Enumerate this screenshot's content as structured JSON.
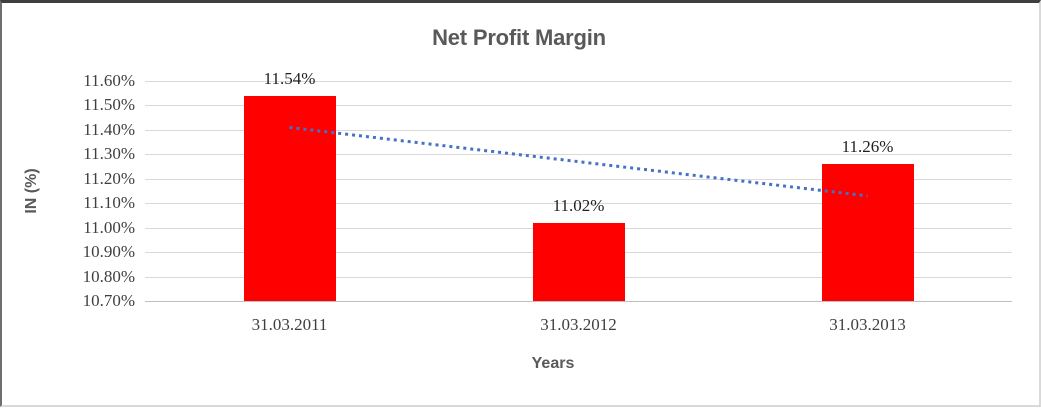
{
  "chart_data": {
    "type": "bar",
    "title": "Net Profit Margin",
    "xlabel": "Years",
    "ylabel": "IN (%)",
    "categories": [
      "31.03.2011",
      "31.03.2012",
      "31.03.2013"
    ],
    "values": [
      11.54,
      11.02,
      11.26
    ],
    "data_labels": [
      "11.54%",
      "11.02%",
      "11.26%"
    ],
    "ylim": [
      10.7,
      11.6
    ],
    "ytick_step": 0.1,
    "ytick_labels": [
      "10.70%",
      "10.80%",
      "10.90%",
      "11.00%",
      "11.10%",
      "11.20%",
      "11.30%",
      "11.40%",
      "11.50%",
      "11.60%"
    ],
    "grid": true,
    "legend": "none",
    "bar_color": "#FF0000",
    "trendline": {
      "type": "linear",
      "style": "dotted",
      "color": "#4472C4",
      "start_value": 11.41,
      "end_value": 11.13
    },
    "colors": {
      "title": "#595959",
      "axis_title": "#595959",
      "tick_label": "#3F3F3F",
      "data_label": "#1F1F1F",
      "gridline": "#D9D9D9",
      "axis_line": "#BFBFBF"
    }
  }
}
